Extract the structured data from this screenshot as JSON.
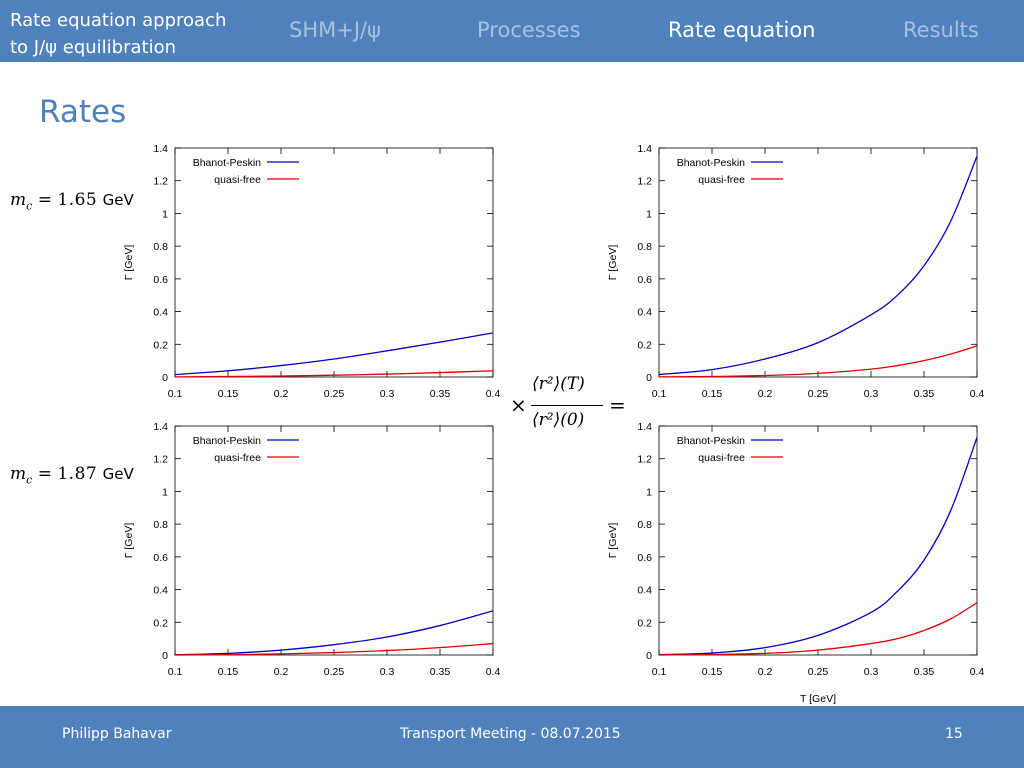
{
  "header": {
    "title_line1": "Rate equation approach",
    "title_line2": "to J/ψ equilibration",
    "nav": [
      {
        "label": "SHM+J/ψ",
        "active": false
      },
      {
        "label": "Processes",
        "active": false
      },
      {
        "label": "Rate equation",
        "active": true
      },
      {
        "label": "Results",
        "active": false
      }
    ]
  },
  "slide_title": "Rates",
  "mass_labels": [
    {
      "symbol": "m",
      "subscript": "c",
      "equals": "=",
      "value": "1.65",
      "unit": "GeV"
    },
    {
      "symbol": "m",
      "subscript": "c",
      "equals": "=",
      "value": "1.87",
      "unit": "GeV"
    }
  ],
  "formula": {
    "times": "×",
    "numerator": "⟨r²⟩(T)",
    "denominator": "⟨r²⟩(0)",
    "equals": "="
  },
  "footer": {
    "author": "Philipp Bahavar",
    "event": "Transport Meeting -  08.07.2015",
    "page": "15"
  },
  "colors": {
    "bar": "#4f81bd",
    "bp": "#0000c0",
    "qf": "#e00000"
  },
  "chart_data": [
    {
      "type": "line",
      "position": "top-left",
      "xlabel": "",
      "ylabel": "Γ [GeV]",
      "xlim": [
        0.1,
        0.4
      ],
      "ylim": [
        0,
        1.4
      ],
      "xticks": [
        "0.1",
        "0.15",
        "0.2",
        "0.25",
        "0.3",
        "0.35",
        "0.4"
      ],
      "yticks": [
        "0",
        "0.2",
        "0.4",
        "0.6",
        "0.8",
        "1",
        "1.2",
        "1.4"
      ],
      "legend": "top-left",
      "series": [
        {
          "name": "Bhanot-Peskin",
          "color": "#0000c0",
          "x": [
            0.1,
            0.15,
            0.2,
            0.25,
            0.3,
            0.35,
            0.4
          ],
          "y": [
            0.015,
            0.038,
            0.07,
            0.11,
            0.16,
            0.213,
            0.27
          ]
        },
        {
          "name": "quasi-free",
          "color": "#e00000",
          "x": [
            0.1,
            0.15,
            0.2,
            0.25,
            0.3,
            0.35,
            0.4
          ],
          "y": [
            0.001,
            0.003,
            0.006,
            0.011,
            0.018,
            0.027,
            0.038
          ]
        }
      ]
    },
    {
      "type": "line",
      "position": "top-right",
      "xlabel": "",
      "ylabel": "Γ [GeV]",
      "xlim": [
        0.1,
        0.4
      ],
      "ylim": [
        0,
        1.4
      ],
      "xticks": [
        "0.1",
        "0.15",
        "0.2",
        "0.25",
        "0.3",
        "0.35",
        "0.4"
      ],
      "yticks": [
        "0",
        "0.2",
        "0.4",
        "0.6",
        "0.8",
        "1",
        "1.2",
        "1.4"
      ],
      "legend": "top-left",
      "series": [
        {
          "name": "Bhanot-Peskin",
          "color": "#0000c0",
          "x": [
            0.1,
            0.15,
            0.2,
            0.25,
            0.3,
            0.325,
            0.35,
            0.375,
            0.4
          ],
          "y": [
            0.015,
            0.045,
            0.11,
            0.21,
            0.38,
            0.5,
            0.68,
            0.95,
            1.35
          ]
        },
        {
          "name": "quasi-free",
          "color": "#e00000",
          "x": [
            0.1,
            0.15,
            0.2,
            0.25,
            0.3,
            0.325,
            0.35,
            0.375,
            0.4
          ],
          "y": [
            0.001,
            0.003,
            0.009,
            0.022,
            0.048,
            0.07,
            0.1,
            0.14,
            0.19
          ]
        }
      ]
    },
    {
      "type": "line",
      "position": "bottom-left",
      "xlabel": "",
      "ylabel": "Γ [GeV]",
      "xlim": [
        0.1,
        0.4
      ],
      "ylim": [
        0,
        1.4
      ],
      "xticks": [
        "0.1",
        "0.15",
        "0.2",
        "0.25",
        "0.3",
        "0.35",
        "0.4"
      ],
      "yticks": [
        "0",
        "0.2",
        "0.4",
        "0.6",
        "0.8",
        "1",
        "1.2",
        "1.4"
      ],
      "legend": "top-left",
      "series": [
        {
          "name": "Bhanot-Peskin",
          "color": "#0000c0",
          "x": [
            0.1,
            0.15,
            0.2,
            0.25,
            0.3,
            0.35,
            0.4
          ],
          "y": [
            0.002,
            0.01,
            0.03,
            0.063,
            0.11,
            0.18,
            0.27
          ]
        },
        {
          "name": "quasi-free",
          "color": "#e00000",
          "x": [
            0.1,
            0.15,
            0.2,
            0.25,
            0.3,
            0.35,
            0.4
          ],
          "y": [
            0.0005,
            0.002,
            0.007,
            0.015,
            0.027,
            0.045,
            0.07
          ]
        }
      ]
    },
    {
      "type": "line",
      "position": "bottom-right",
      "xlabel": "T [GeV]",
      "ylabel": "Γ [GeV]",
      "xlim": [
        0.1,
        0.4
      ],
      "ylim": [
        0,
        1.4
      ],
      "xticks": [
        "0.1",
        "0.15",
        "0.2",
        "0.25",
        "0.3",
        "0.35",
        "0.4"
      ],
      "yticks": [
        "0",
        "0.2",
        "0.4",
        "0.6",
        "0.8",
        "1",
        "1.2",
        "1.4"
      ],
      "legend": "top-left",
      "series": [
        {
          "name": "Bhanot-Peskin",
          "color": "#0000c0",
          "x": [
            0.1,
            0.15,
            0.2,
            0.25,
            0.3,
            0.325,
            0.35,
            0.375,
            0.4
          ],
          "y": [
            0.002,
            0.012,
            0.045,
            0.12,
            0.26,
            0.39,
            0.58,
            0.88,
            1.33
          ]
        },
        {
          "name": "quasi-free",
          "color": "#e00000",
          "x": [
            0.1,
            0.15,
            0.2,
            0.25,
            0.3,
            0.325,
            0.35,
            0.375,
            0.4
          ],
          "y": [
            0.0005,
            0.003,
            0.01,
            0.03,
            0.07,
            0.1,
            0.15,
            0.22,
            0.32
          ]
        }
      ]
    }
  ]
}
